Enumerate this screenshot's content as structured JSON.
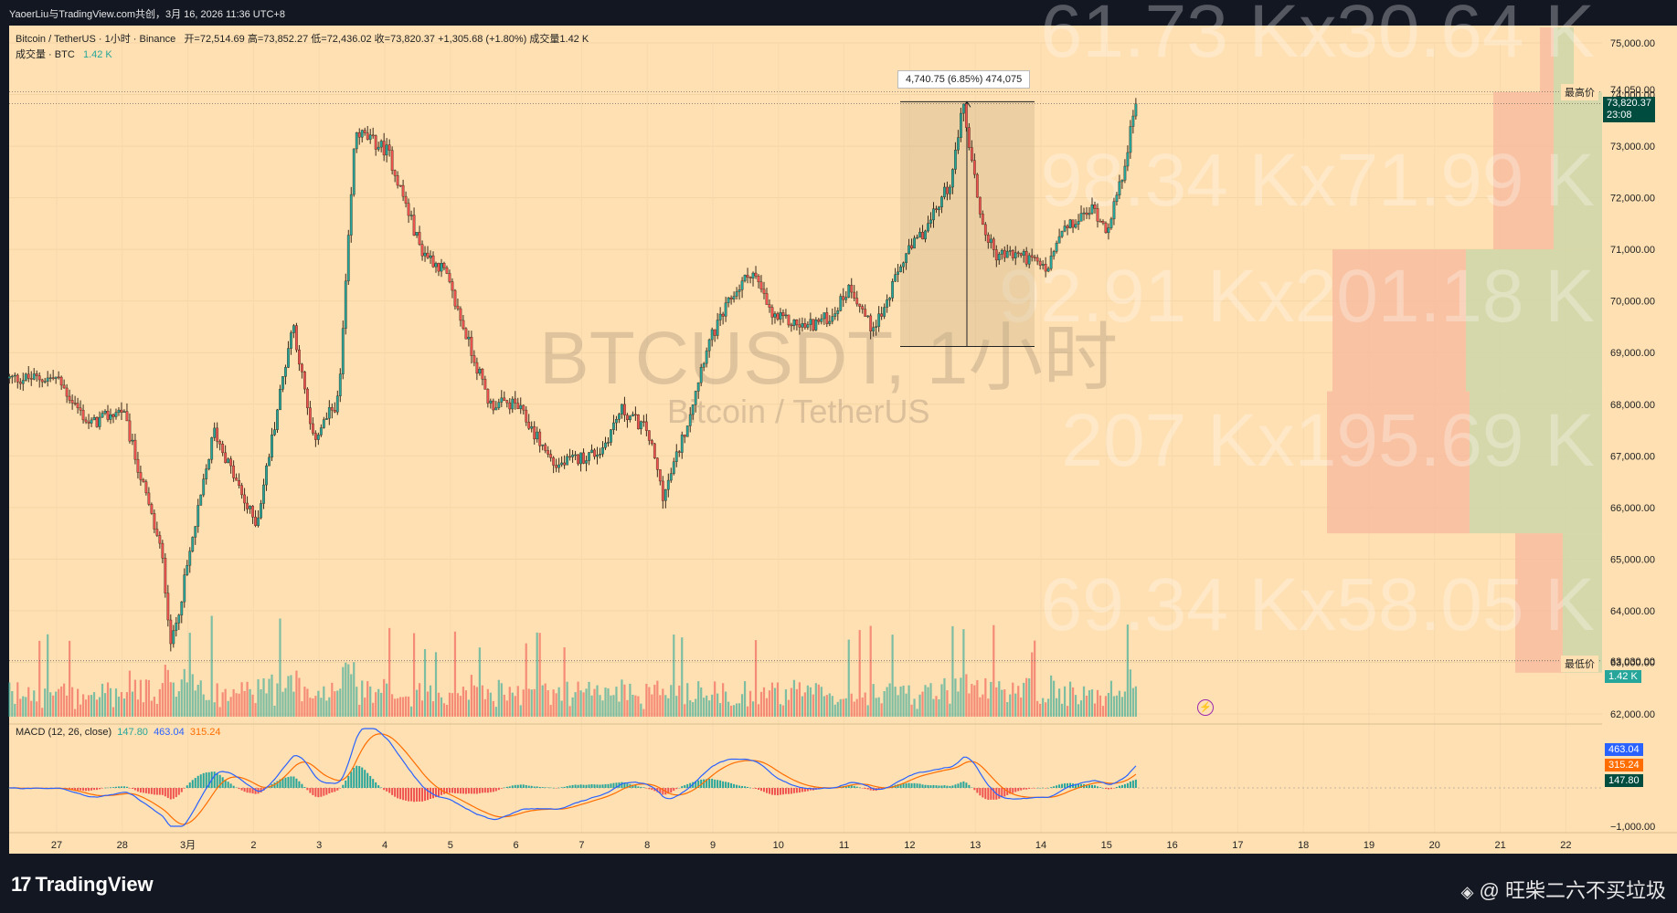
{
  "header": {
    "text": "YaoerLiu与TradingView.com共创，3月 16, 2026 11:36 UTC+8"
  },
  "legend": {
    "symbol_line": "Bitcoin / TetherUS · 1小时 · Binance",
    "ohlc": "开=72,514.69  高=73,852.27  低=72,436.02  收=73,820.37  +1,305.68 (+1.80%)  成交量1.42 K",
    "volume_label": "成交量 · BTC",
    "volume_value": "1.42 K"
  },
  "watermark": {
    "symbol": "BTCUSDT, 1小时",
    "name": "Bitcoin / TetherUS"
  },
  "measure_label": "4,740.75 (6.85%) 474,075",
  "volume_profile_texts": [
    "61.73 Kx30.64 K",
    "98.34 Kx71.99 K",
    "92.91 Kx201.18 K",
    "207 Kx195.69 K",
    "69.34 Kx58.05 K"
  ],
  "price_tags": {
    "high_label": "最高价",
    "high_value": "74,050.00",
    "last_value": "73,820.37",
    "last_time": "23:08",
    "low_label": "最低价",
    "low_value": "63,030.00",
    "volume_tag": "1.42 K"
  },
  "macd": {
    "label": "MACD (12, 26, close)",
    "hist_value": "147.80",
    "macd_value": "463.04",
    "signal_value": "315.24",
    "axis_ticks": [
      "−1,000.00"
    ],
    "colors": {
      "macd": "#2962ff",
      "signal": "#ff6d00",
      "hist_up": "#26a69a",
      "hist_down": "#ef5350"
    }
  },
  "footer": {
    "brand": "TradingView",
    "credit": "@ 旺柴二六不买垃圾"
  },
  "colors": {
    "background": "#ffe0b2",
    "up": "#26a69a",
    "down": "#ef5350",
    "frame": "#131722"
  },
  "chart_data": {
    "type": "candlestick",
    "title": "BTCUSDT, 1小时",
    "ylabel": "",
    "ylim": [
      62000,
      75000
    ],
    "y_ticks": [
      75000,
      74000,
      73000,
      72000,
      71000,
      70000,
      69000,
      68000,
      67000,
      66000,
      65000,
      64000,
      63000,
      62000
    ],
    "y_tick_labels": [
      "75,000.00",
      "74,000.00",
      "73,000.00",
      "72,000.00",
      "71,000.00",
      "70,000.00",
      "69,000.00",
      "68,000.00",
      "67,000.00",
      "66,000.00",
      "65,000.00",
      "64,000.00",
      "63,000.00",
      "62,000.00"
    ],
    "x_tick_labels": [
      "27",
      "28",
      "3月",
      "2",
      "3",
      "4",
      "5",
      "6",
      "7",
      "8",
      "9",
      "10",
      "11",
      "12",
      "13",
      "14",
      "15",
      "16",
      "17",
      "18",
      "19",
      "20",
      "21",
      "22"
    ],
    "close_path_days": [
      0,
      0.5,
      1.0,
      1.6,
      1.75,
      2.4,
      2.9,
      3.05,
      3.6,
      3.9,
      4.3,
      4.55,
      5.05,
      5.55,
      5.9,
      6.6,
      7.0,
      7.6,
      8.3,
      8.6,
      9.0,
      9.25,
      9.6,
      9.9,
      10.3,
      10.6,
      10.9,
      11.4,
      11.8,
      12.1,
      12.4,
      12.6,
      12.9,
      13.3,
      13.65,
      13.8,
      14.1,
      14.3,
      14.7,
      15.1,
      15.3,
      15.6,
      15.8,
      16.0,
      16.2,
      16.45
    ],
    "close_path_prices": [
      68500,
      67600,
      67900,
      65100,
      63300,
      67500,
      66000,
      65700,
      69600,
      67300,
      68100,
      73300,
      72900,
      71000,
      70600,
      68000,
      68000,
      66800,
      67100,
      67900,
      67500,
      66200,
      67600,
      69100,
      70100,
      70600,
      69700,
      69500,
      69700,
      70300,
      69500,
      69800,
      70800,
      71500,
      72400,
      73900,
      71500,
      70900,
      70900,
      70600,
      71300,
      71600,
      71800,
      71400,
      72200,
      73820
    ],
    "annotations": {
      "measure": {
        "from_price": 69120,
        "to_price": 73861,
        "label": "4,740.75 (6.85%) 474,075"
      },
      "high_line": 74050,
      "low_line": 63030,
      "last_price": 73820.37
    },
    "volume_profile": [
      {
        "from": 74050,
        "to": 75300,
        "sell": "30.64 K",
        "buy": "61.73 K"
      },
      {
        "from": 71000,
        "to": 74050,
        "sell": "71.99 K",
        "buy": "98.34 K"
      },
      {
        "from": 68250,
        "to": 71000,
        "sell": "201.18 K",
        "buy": "92.91 K"
      },
      {
        "from": 65500,
        "to": 68250,
        "sell": "195.69 K",
        "buy": "207 K"
      },
      {
        "from": 62800,
        "to": 65500,
        "sell": "58.05 K",
        "buy": "69.34 K"
      }
    ]
  }
}
